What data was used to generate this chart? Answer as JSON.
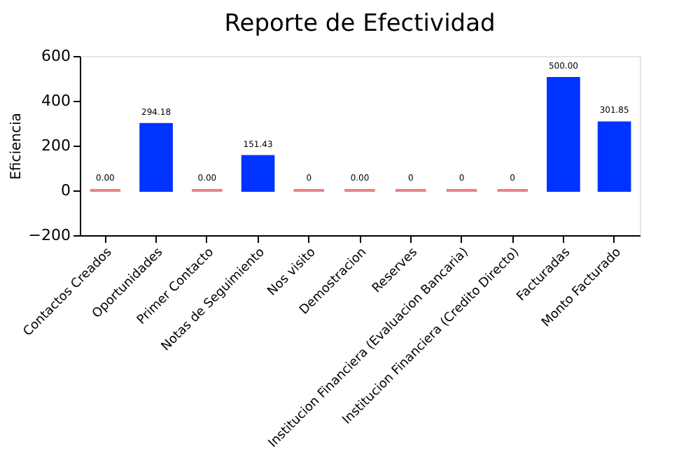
{
  "chart_data": {
    "type": "bar",
    "title": "Reporte de Efectividad",
    "ylabel": "Eficiencia",
    "categories": [
      "Contactos Creados",
      "Oportunidades",
      "Primer Contacto",
      "Notas de Seguimiento",
      "Nos visito",
      "Demostracion",
      "Reserves",
      "Institucion Financiera (Evaluacion Bancaria)",
      "Institucion Financiera (Credito Directo)",
      "Facturadas",
      "Monto Facturado"
    ],
    "values": [
      0,
      294.18,
      0,
      151.43,
      0,
      0,
      0,
      0,
      0,
      500,
      301.85
    ],
    "value_labels": [
      "0.00",
      "294.18",
      "0.00",
      "151.43",
      "0",
      "0.00",
      "0",
      "0",
      "0",
      "500.00",
      "301.85"
    ],
    "colors": [
      "#f08080",
      "#0033ff",
      "#f08080",
      "#0033ff",
      "#f08080",
      "#f08080",
      "#f08080",
      "#f08080",
      "#f08080",
      "#0033ff",
      "#0033ff"
    ],
    "ylim": [
      -200,
      600
    ],
    "yticks": [
      -200,
      0,
      200,
      400,
      600
    ],
    "grid": false
  }
}
